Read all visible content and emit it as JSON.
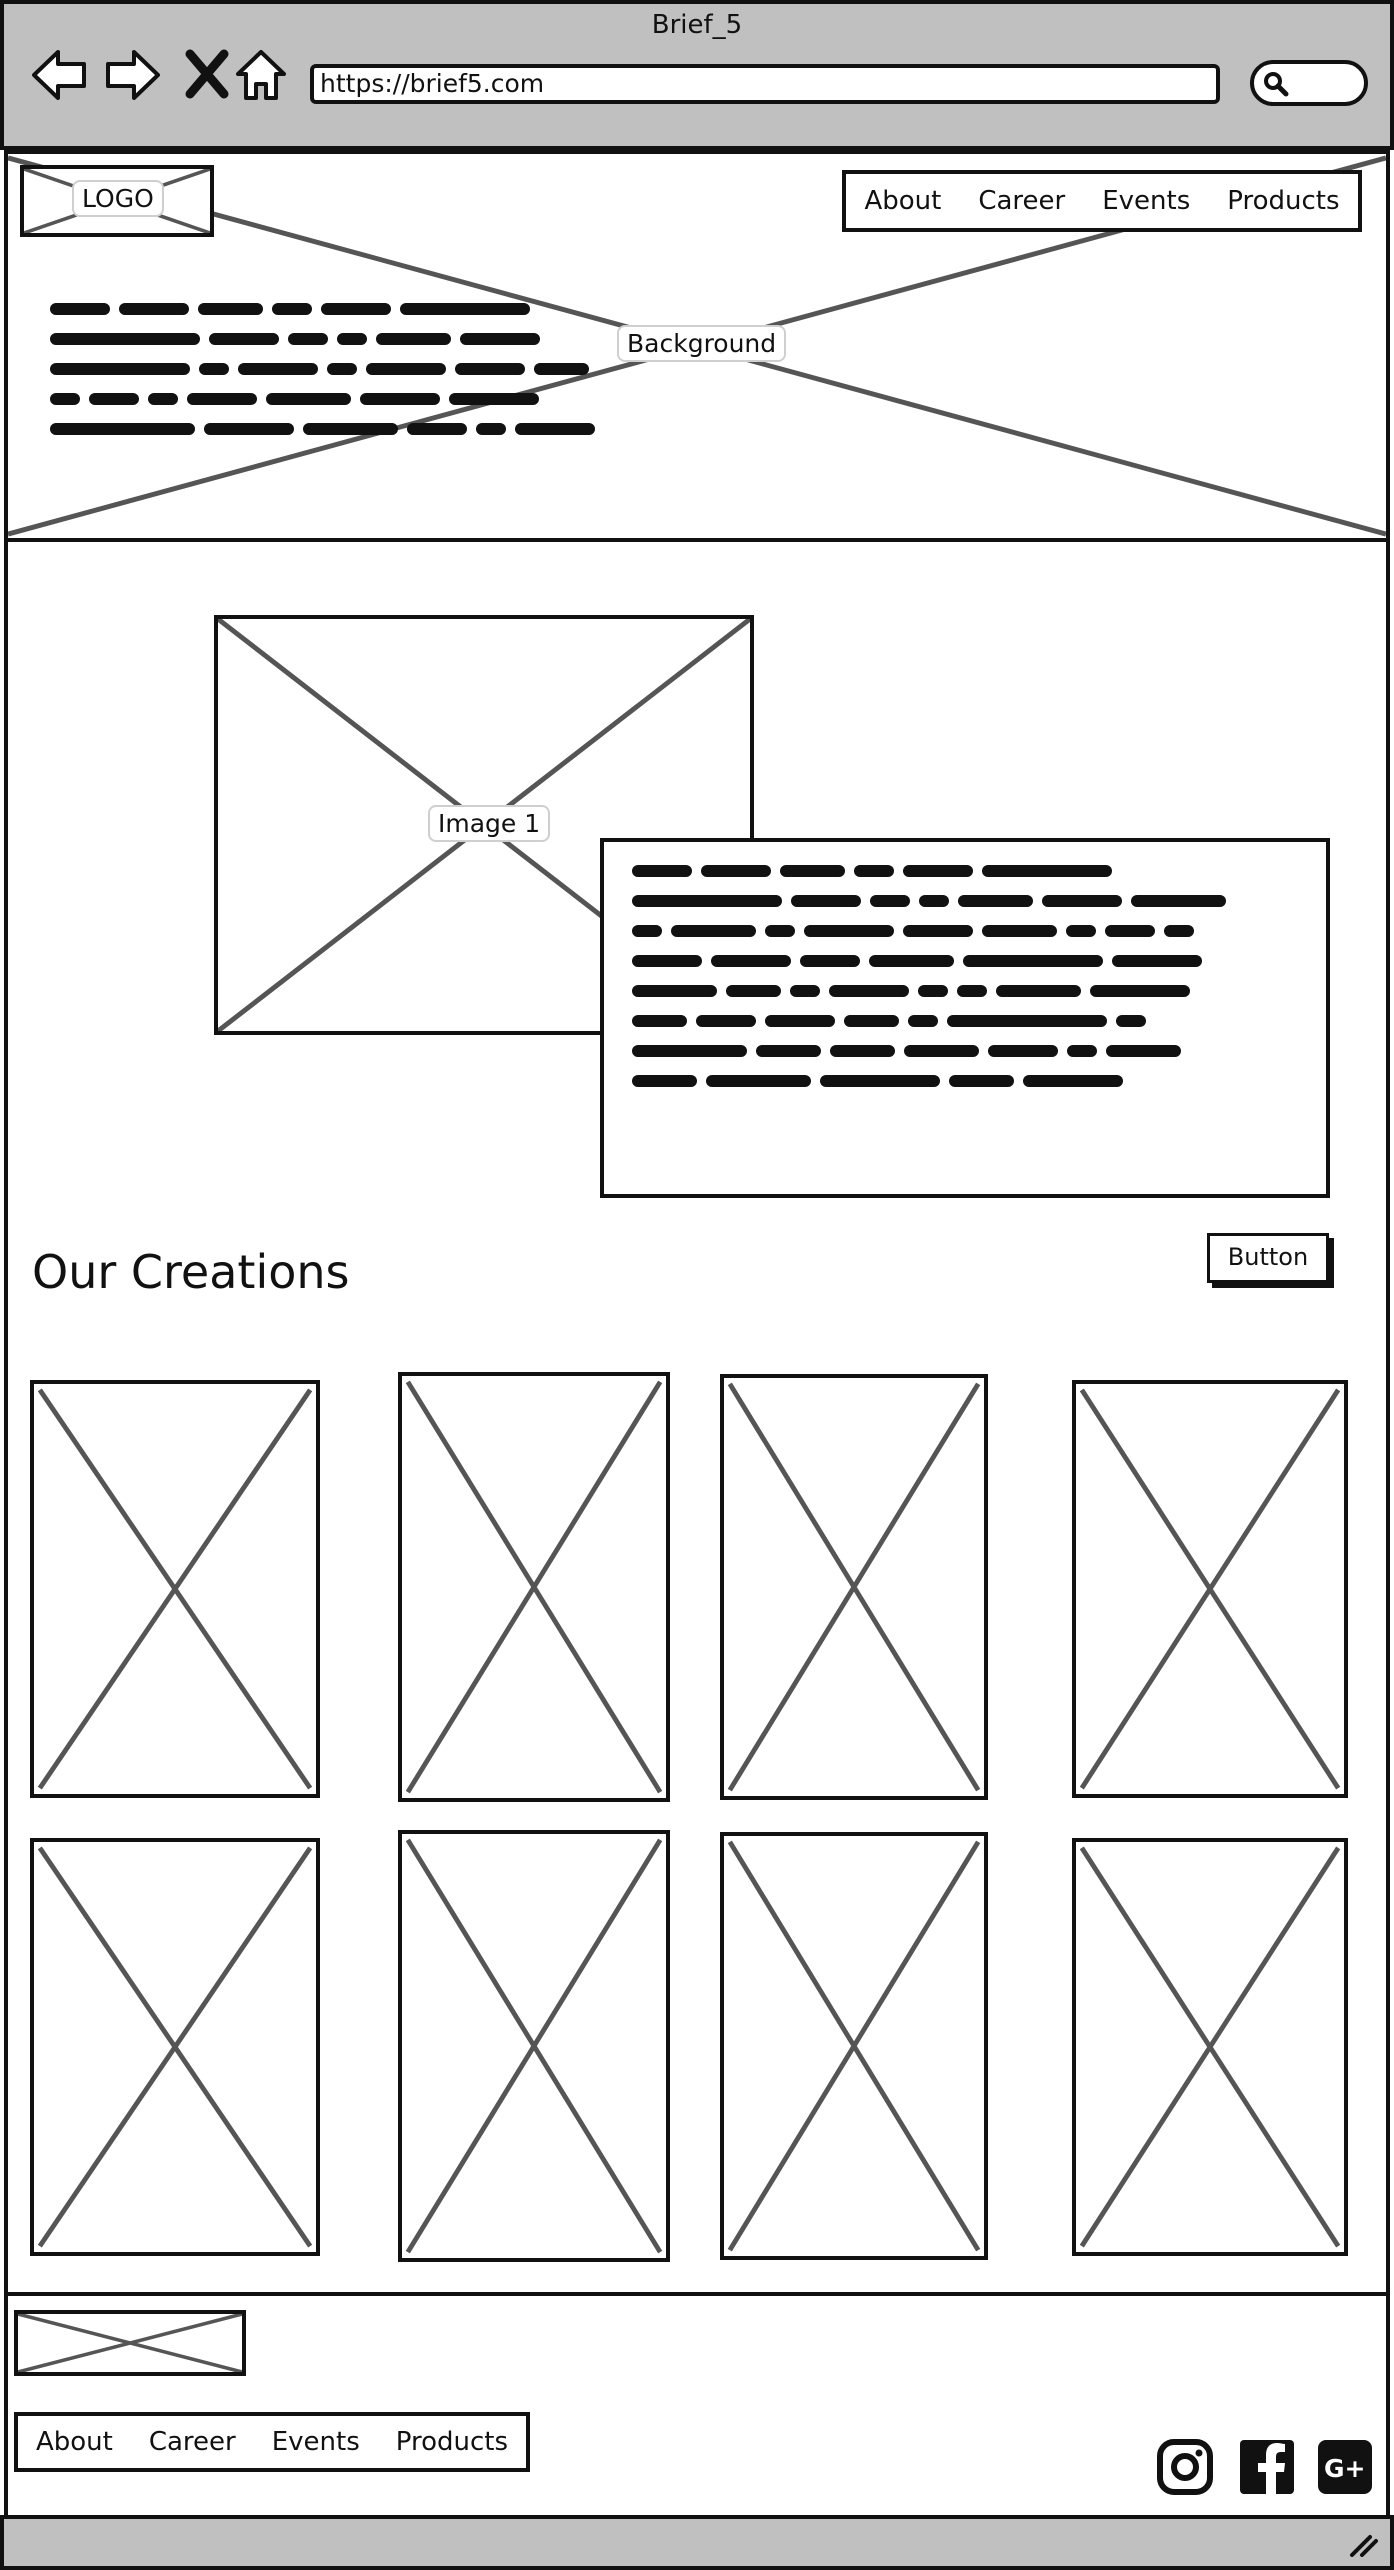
{
  "browser": {
    "title": "Brief_5",
    "url": "https://brief5.com",
    "icons": [
      "back-arrow-icon",
      "forward-arrow-icon",
      "stop-icon",
      "home-icon",
      "search-icon"
    ]
  },
  "header": {
    "logo_label": "LOGO",
    "background_label": "Background",
    "nav": [
      "About",
      "Career",
      "Events",
      "Products"
    ]
  },
  "intro": {
    "image_label": "Image 1"
  },
  "creations": {
    "heading": "Our Creations",
    "button_label": "Button"
  },
  "footer": {
    "nav": [
      "About",
      "Career",
      "Events",
      "Products"
    ],
    "social_icons": [
      "instagram-icon",
      "facebook-icon",
      "google-plus-icon"
    ]
  }
}
